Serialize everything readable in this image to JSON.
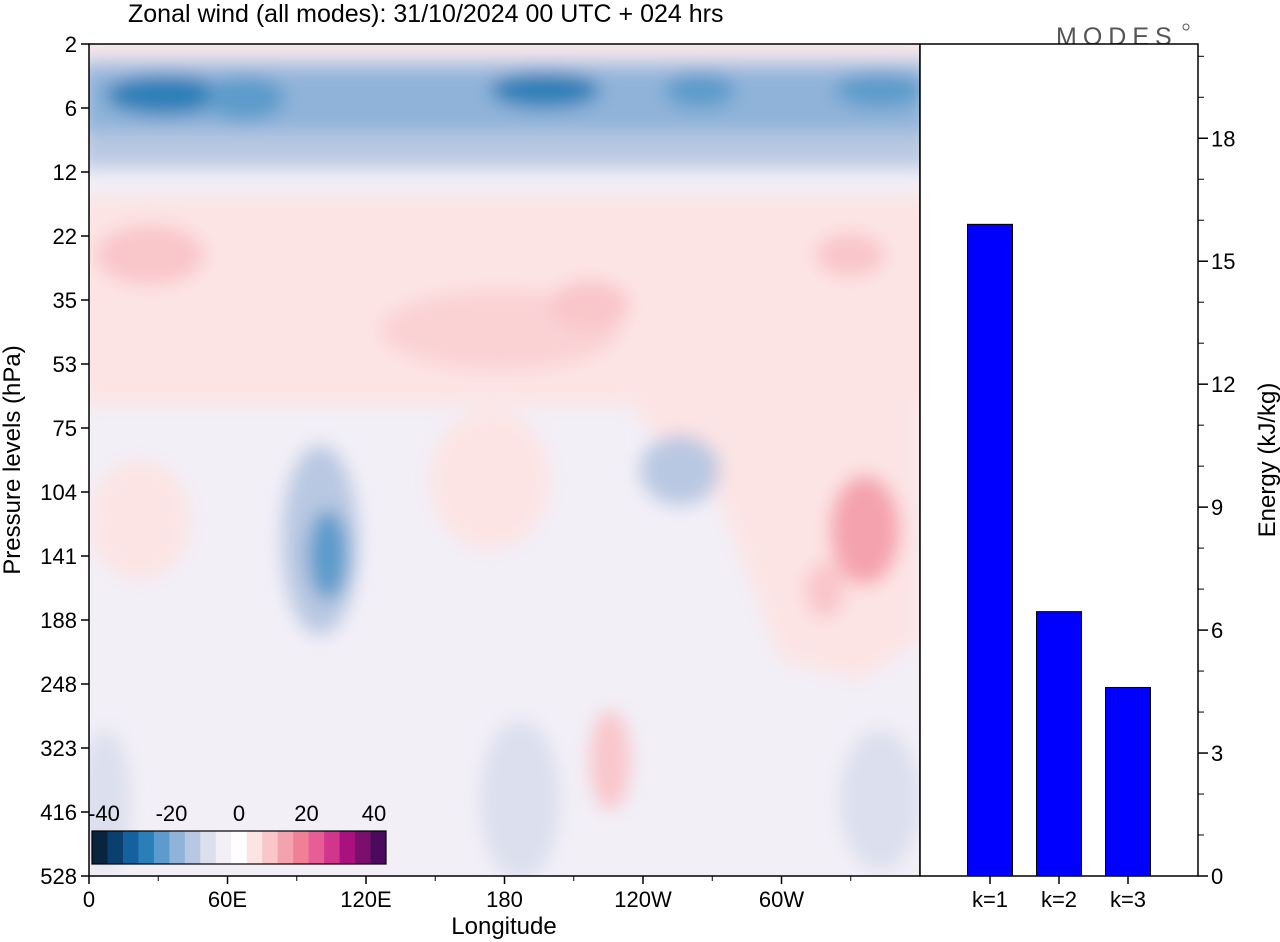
{
  "title": "Zonal wind (all modes):  31/10/2024  00 UTC  + 024 hrs",
  "logo_text": "MODES",
  "colors": {
    "bar_fill": "#0000ff",
    "frame": "#000000"
  },
  "chart_data": [
    {
      "type": "heatmap",
      "title": "Zonal wind (all modes):  31/10/2024  00 UTC  + 024 hrs",
      "xlabel": "Longitude",
      "ylabel": "Pressure levels (hPa)",
      "x_ticks": [
        "0",
        "60E",
        "120E",
        "180",
        "120W",
        "60W"
      ],
      "y_ticks": [
        "2",
        "6",
        "12",
        "22",
        "35",
        "53",
        "75",
        "104",
        "141",
        "188",
        "248",
        "323",
        "416",
        "528"
      ],
      "colorbar": {
        "labels": [
          "-40",
          "-20",
          "0",
          "20",
          "40"
        ],
        "range": [
          -40,
          40
        ],
        "colors": [
          "#08243f",
          "#0b3f6e",
          "#1561a0",
          "#2b7fb8",
          "#5c9bcb",
          "#8fb3d9",
          "#b9c8e2",
          "#dcdfee",
          "#f2eff7",
          "#ffffff",
          "#fde4e4",
          "#f9c6ca",
          "#f4a3ae",
          "#ef8096",
          "#e75d97",
          "#d2358e",
          "#a8117e",
          "#7a0f6e",
          "#4b0a5e"
        ]
      }
    },
    {
      "type": "bar",
      "categories": [
        "k=1",
        "k=2",
        "k=3"
      ],
      "values": [
        15.9,
        6.45,
        4.6
      ],
      "ylabel": "Energy (kJ/kg)",
      "ylim": [
        0,
        20.3
      ],
      "y_ticks": [
        0,
        3,
        6,
        9,
        12,
        15,
        18
      ]
    }
  ]
}
